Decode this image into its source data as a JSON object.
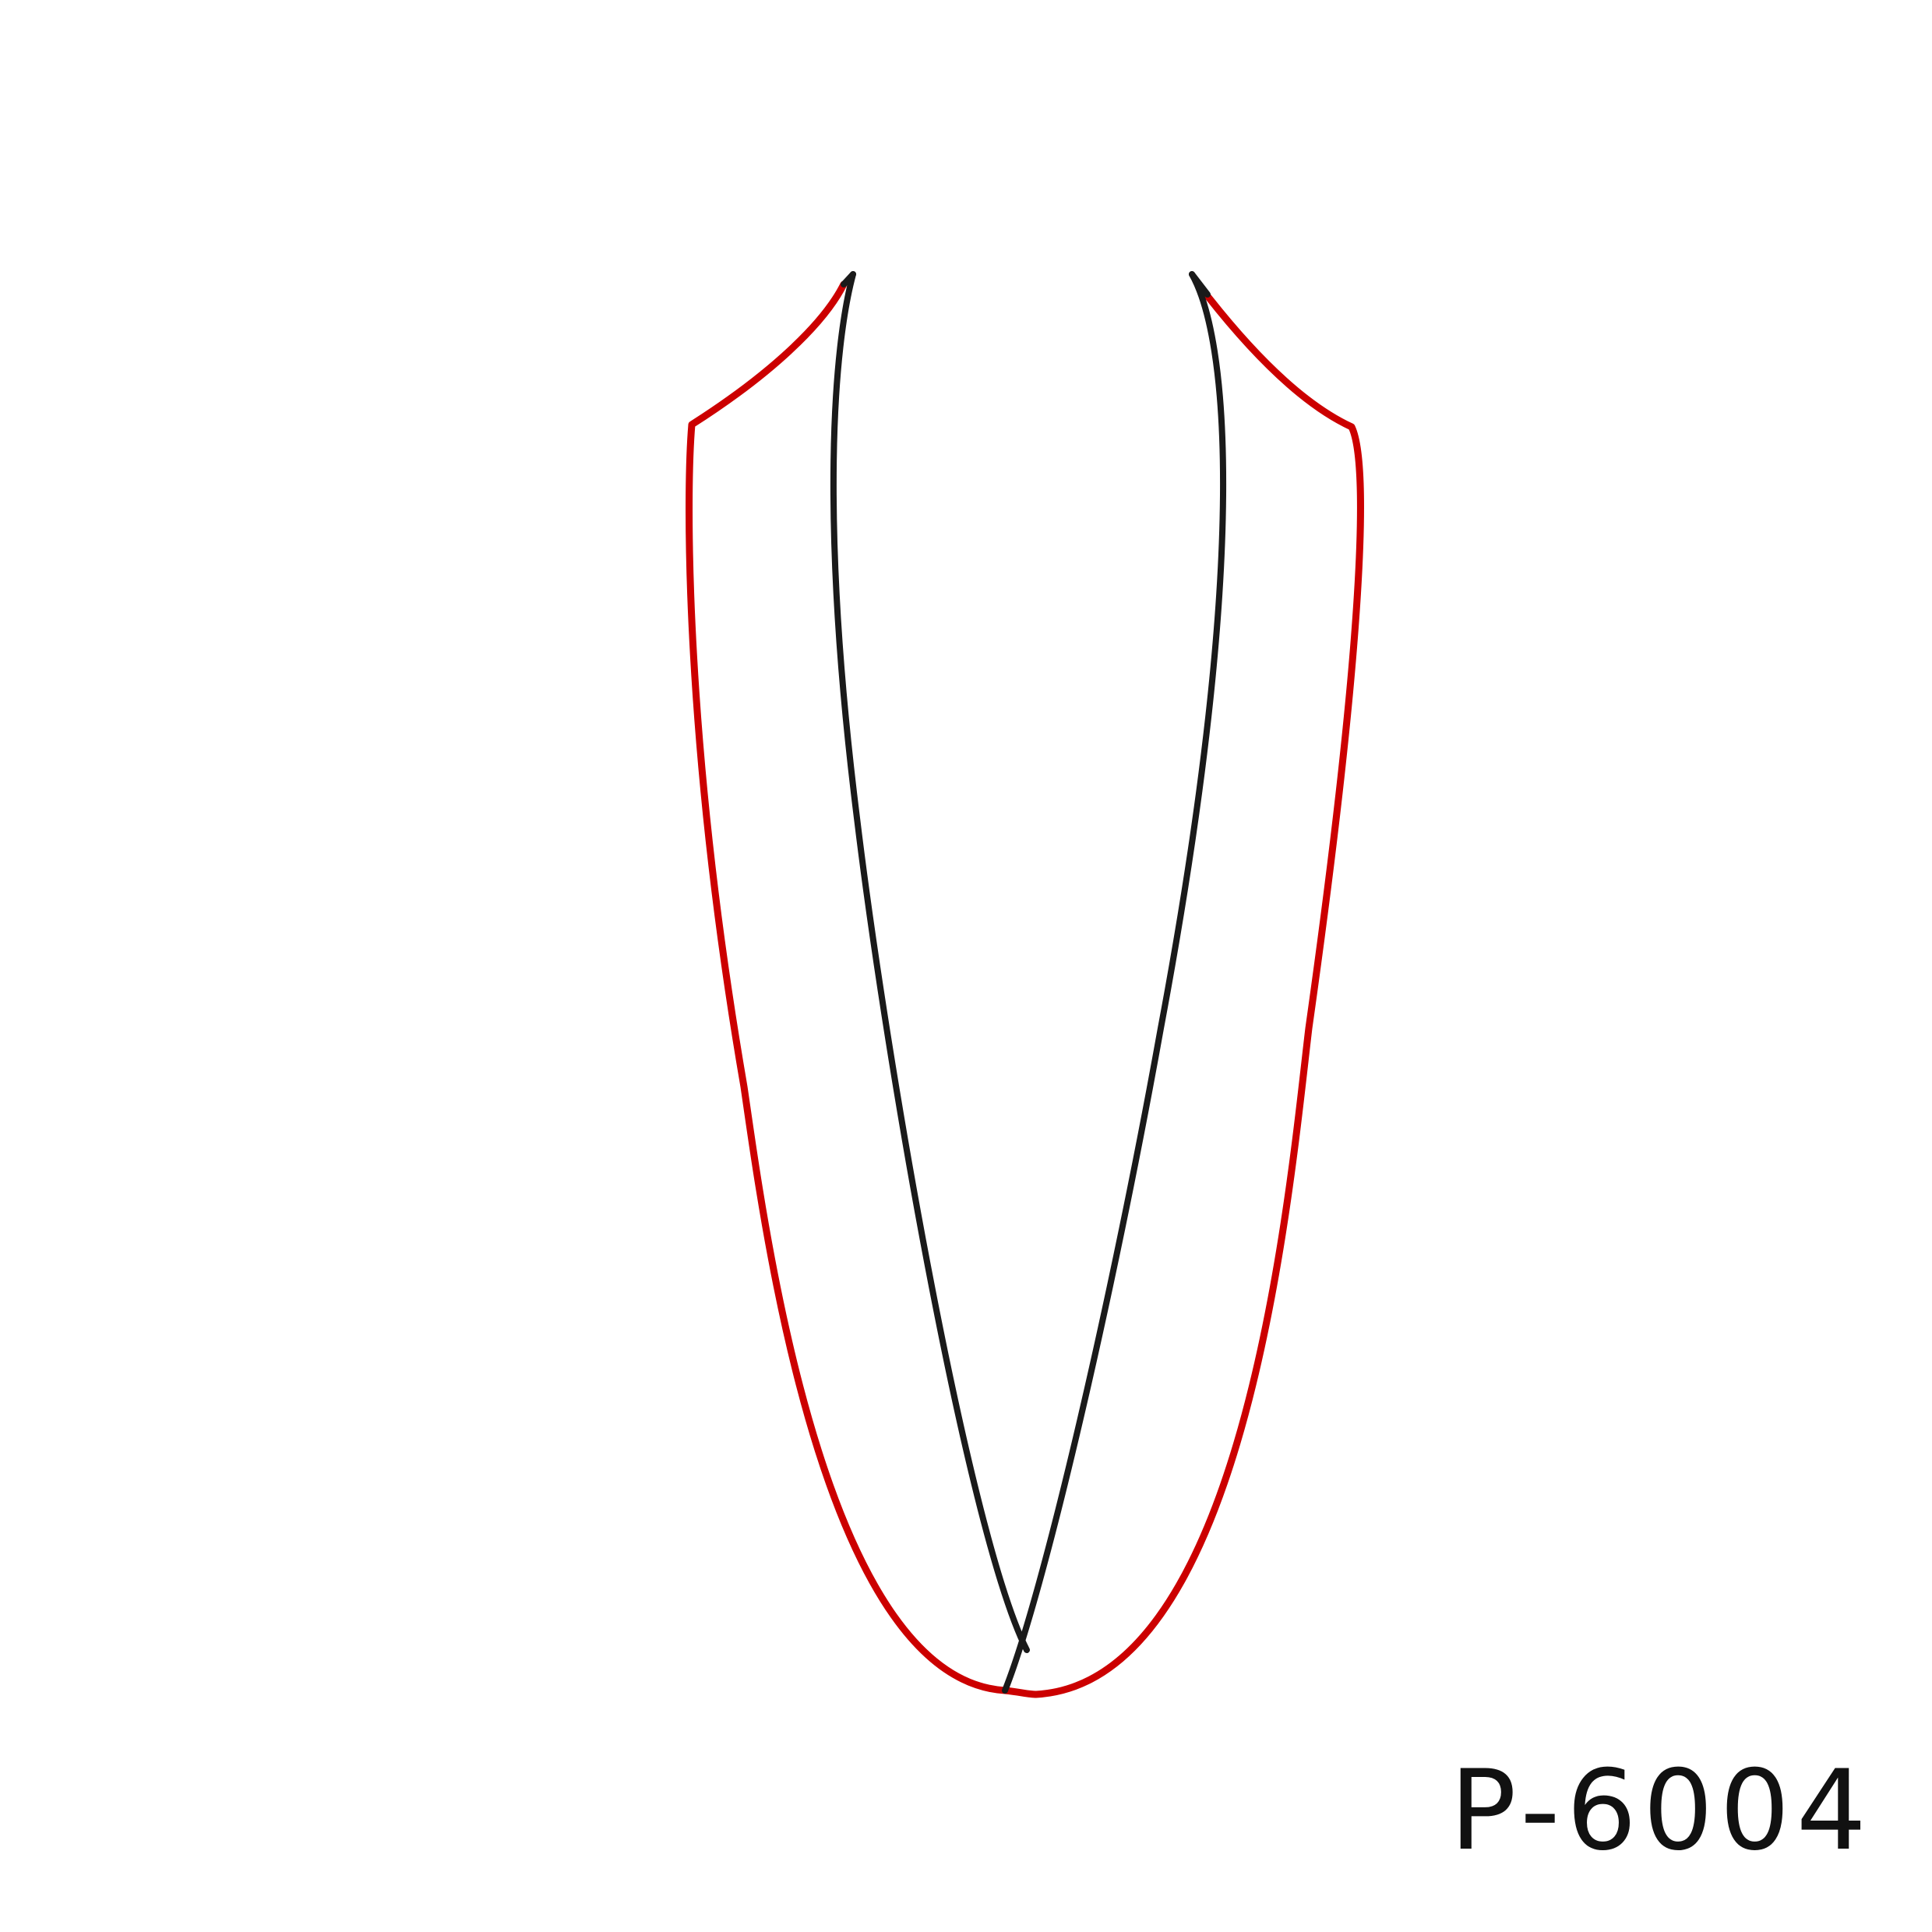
{
  "part_code": "P-6004",
  "colors": {
    "outline": "#cc0000",
    "inner_line": "#1a1a1a",
    "text": "#111111",
    "background": "#ffffff"
  }
}
